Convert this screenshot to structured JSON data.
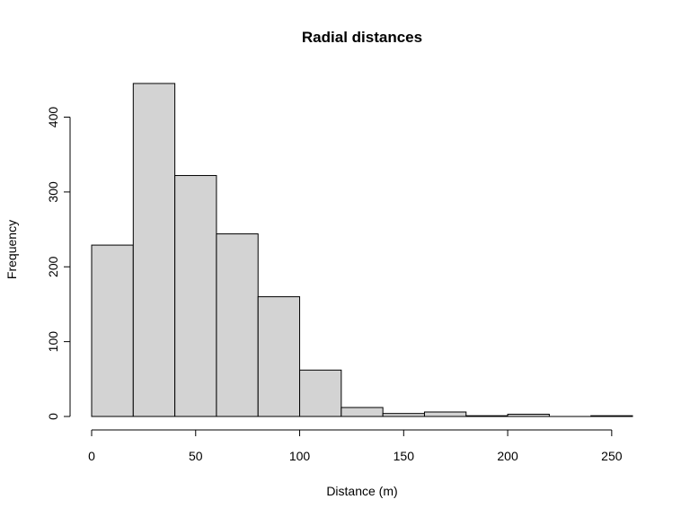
{
  "chart_data": {
    "type": "bar",
    "title": "Radial distances",
    "xlabel": "Distance (m)",
    "ylabel": "Frequency",
    "bins": [
      {
        "start": 0,
        "end": 20,
        "count": 229
      },
      {
        "start": 20,
        "end": 40,
        "count": 445
      },
      {
        "start": 40,
        "end": 60,
        "count": 322
      },
      {
        "start": 60,
        "end": 80,
        "count": 244
      },
      {
        "start": 80,
        "end": 100,
        "count": 160
      },
      {
        "start": 100,
        "end": 120,
        "count": 62
      },
      {
        "start": 120,
        "end": 140,
        "count": 12
      },
      {
        "start": 140,
        "end": 160,
        "count": 4
      },
      {
        "start": 160,
        "end": 180,
        "count": 6
      },
      {
        "start": 180,
        "end": 200,
        "count": 1
      },
      {
        "start": 200,
        "end": 220,
        "count": 3
      },
      {
        "start": 220,
        "end": 240,
        "count": 0
      },
      {
        "start": 240,
        "end": 260,
        "count": 1
      }
    ],
    "x_ticks": [
      "0",
      "50",
      "100",
      "150",
      "200",
      "250"
    ],
    "y_ticks": [
      "0",
      "100",
      "200",
      "300",
      "400"
    ],
    "xlim": [
      0,
      260
    ],
    "ylim": [
      0,
      445
    ],
    "grid": false,
    "bar_color": "#d3d3d3",
    "edge_color": "#000000"
  }
}
